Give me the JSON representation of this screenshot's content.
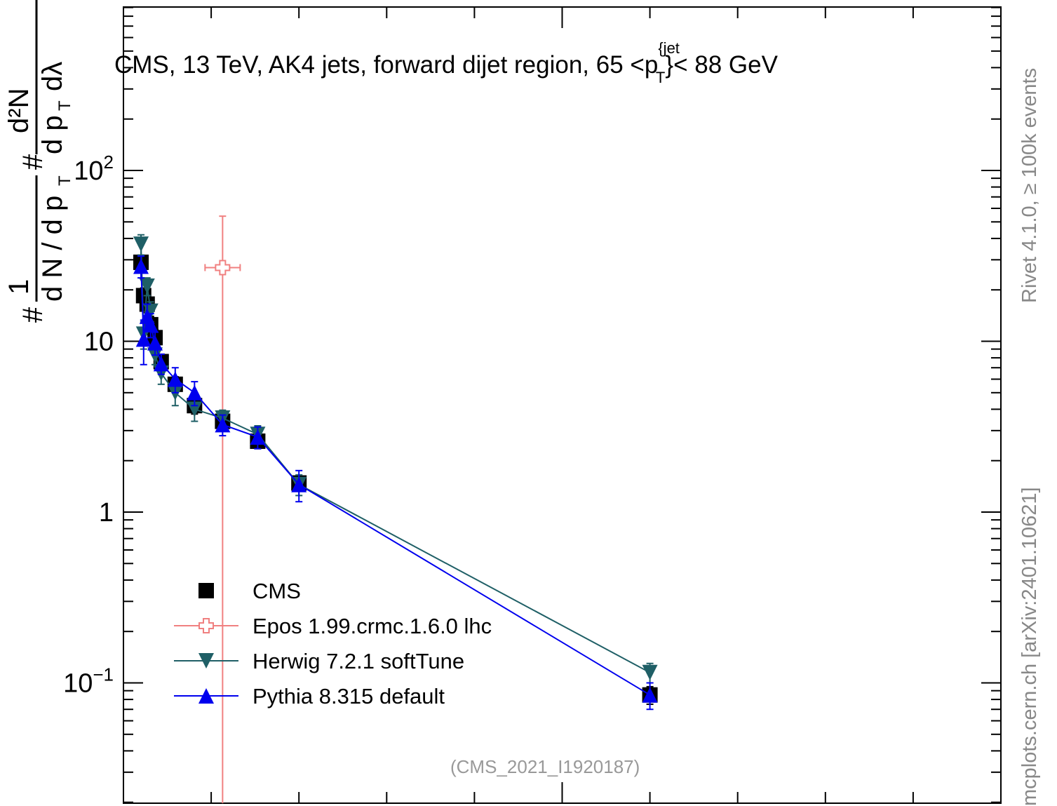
{
  "chart_data": {
    "type": "scatter",
    "title_parts": {
      "main": "CMS, 13 TeV, AK4 jets, forward dijet region, 65 <p",
      "sup": "{jet",
      "sub": "T",
      "end": "}< 88 GeV"
    },
    "ylabel": "1/N dN/dp_T d²N/dp_T dλ",
    "side_label_top": "Rivet 4.1.0, ≥ 100k events",
    "side_label_bottom": "mcplots.cern.ch [arXiv:2401.10621]",
    "source_label": "(CMS_2021_I1920187)",
    "y_scale": "log",
    "ylim": [
      0.025,
      800
    ],
    "xlim": [
      0.0,
      1.0
    ],
    "y_tick_labels": [
      {
        "value": 100,
        "base": "10",
        "exp": "2"
      },
      {
        "value": 10,
        "base": "10",
        "exp": ""
      },
      {
        "value": 1,
        "base": "1",
        "exp": ""
      },
      {
        "value": 0.1,
        "base": "10",
        "exp": "−1"
      }
    ],
    "legend": {
      "placement": "bottom-left"
    },
    "series": [
      {
        "name": "CMS",
        "color": "#000000",
        "marker": "square",
        "line": false,
        "points": [
          {
            "x": 0.02,
            "y": 29.0,
            "err": 2.5
          },
          {
            "x": 0.023,
            "y": 18.5,
            "err": 2.0
          },
          {
            "x": 0.027,
            "y": 16.5,
            "err": 1.8
          },
          {
            "x": 0.031,
            "y": 12.5,
            "err": 1.5
          },
          {
            "x": 0.036,
            "y": 10.5,
            "err": 1.2
          },
          {
            "x": 0.043,
            "y": 7.6,
            "err": 0.8
          },
          {
            "x": 0.059,
            "y": 5.6,
            "err": 0.6
          },
          {
            "x": 0.081,
            "y": 4.2,
            "err": 0.45
          },
          {
            "x": 0.113,
            "y": 3.4,
            "err": 0.35
          },
          {
            "x": 0.153,
            "y": 2.6,
            "err": 0.25
          },
          {
            "x": 0.2,
            "y": 1.48,
            "err": 0.15
          },
          {
            "x": 0.6,
            "y": 0.085,
            "err": 0.01
          }
        ]
      },
      {
        "name": "Epos 1.99.crmc.1.6.0 lhc",
        "color": "#f08080",
        "marker": "open-cross",
        "line": true,
        "points": [
          {
            "x": 0.113,
            "y": 27.0,
            "err_low": 27.0,
            "err_high": 27.0,
            "xerr": 0.02
          }
        ]
      },
      {
        "name": "Herwig 7.2.1 softTune",
        "color": "#1f5f66",
        "marker": "triangle-down",
        "line": true,
        "points": [
          {
            "x": 0.02,
            "y": 37.0,
            "err": 5.0
          },
          {
            "x": 0.023,
            "y": 11.0,
            "err": 2.0
          },
          {
            "x": 0.027,
            "y": 21.0,
            "err": 2.5
          },
          {
            "x": 0.031,
            "y": 15.0,
            "err": 2.0
          },
          {
            "x": 0.036,
            "y": 8.3,
            "err": 1.0
          },
          {
            "x": 0.043,
            "y": 6.5,
            "err": 0.9
          },
          {
            "x": 0.059,
            "y": 5.0,
            "err": 0.8
          },
          {
            "x": 0.081,
            "y": 4.0,
            "err": 0.6
          },
          {
            "x": 0.113,
            "y": 3.55,
            "err": 0.4
          },
          {
            "x": 0.153,
            "y": 2.85,
            "err": 0.35
          },
          {
            "x": 0.2,
            "y": 1.45,
            "err": 0.2
          },
          {
            "x": 0.6,
            "y": 0.115,
            "err": 0.015
          }
        ]
      },
      {
        "name": "Pythia 8.315 default",
        "color": "#0000ee",
        "marker": "triangle-up",
        "line": true,
        "points": [
          {
            "x": 0.02,
            "y": 27.5,
            "err": 4.0
          },
          {
            "x": 0.023,
            "y": 10.3,
            "err": 3.0
          },
          {
            "x": 0.027,
            "y": 14.0,
            "err": 2.5
          },
          {
            "x": 0.031,
            "y": 12.5,
            "err": 2.0
          },
          {
            "x": 0.036,
            "y": 9.8,
            "err": 1.5
          },
          {
            "x": 0.043,
            "y": 7.4,
            "err": 1.0
          },
          {
            "x": 0.059,
            "y": 6.0,
            "err": 1.0
          },
          {
            "x": 0.081,
            "y": 5.0,
            "err": 0.8
          },
          {
            "x": 0.113,
            "y": 3.25,
            "err": 0.45
          },
          {
            "x": 0.153,
            "y": 2.75,
            "err": 0.4
          },
          {
            "x": 0.2,
            "y": 1.45,
            "err": 0.3
          },
          {
            "x": 0.6,
            "y": 0.085,
            "err": 0.015
          }
        ]
      }
    ]
  }
}
